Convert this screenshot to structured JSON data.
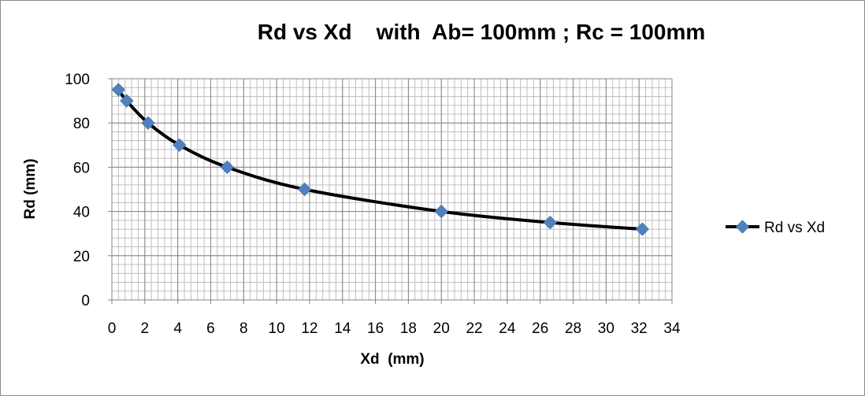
{
  "chart_data": {
    "type": "scatter",
    "title": "Rd vs Xd    with  Ab= 100mm ; Rc = 100mm",
    "xlabel": "Xd  (mm)",
    "ylabel": "Rd (mm)",
    "xlim": [
      0,
      34
    ],
    "ylim": [
      0,
      100
    ],
    "x_ticks": [
      "0",
      "2",
      "4",
      "6",
      "8",
      "10",
      "12",
      "14",
      "16",
      "18",
      "20",
      "22",
      "24",
      "26",
      "28",
      "30",
      "32",
      "34"
    ],
    "y_ticks": [
      "0",
      "20",
      "40",
      "60",
      "80",
      "100"
    ],
    "grid": "major and minor gridlines on",
    "legend_position": "right",
    "series": [
      {
        "name": "Rd vs Xd",
        "style": "smoothed line with diamond markers",
        "line_color": "#000000",
        "marker_color": "#4f81bd",
        "x": [
          0.4,
          0.9,
          2.2,
          4.1,
          7.0,
          11.7,
          20.0,
          26.6,
          32.2
        ],
        "y": [
          95,
          90,
          80,
          70,
          60,
          50,
          40,
          35,
          32
        ]
      }
    ]
  }
}
